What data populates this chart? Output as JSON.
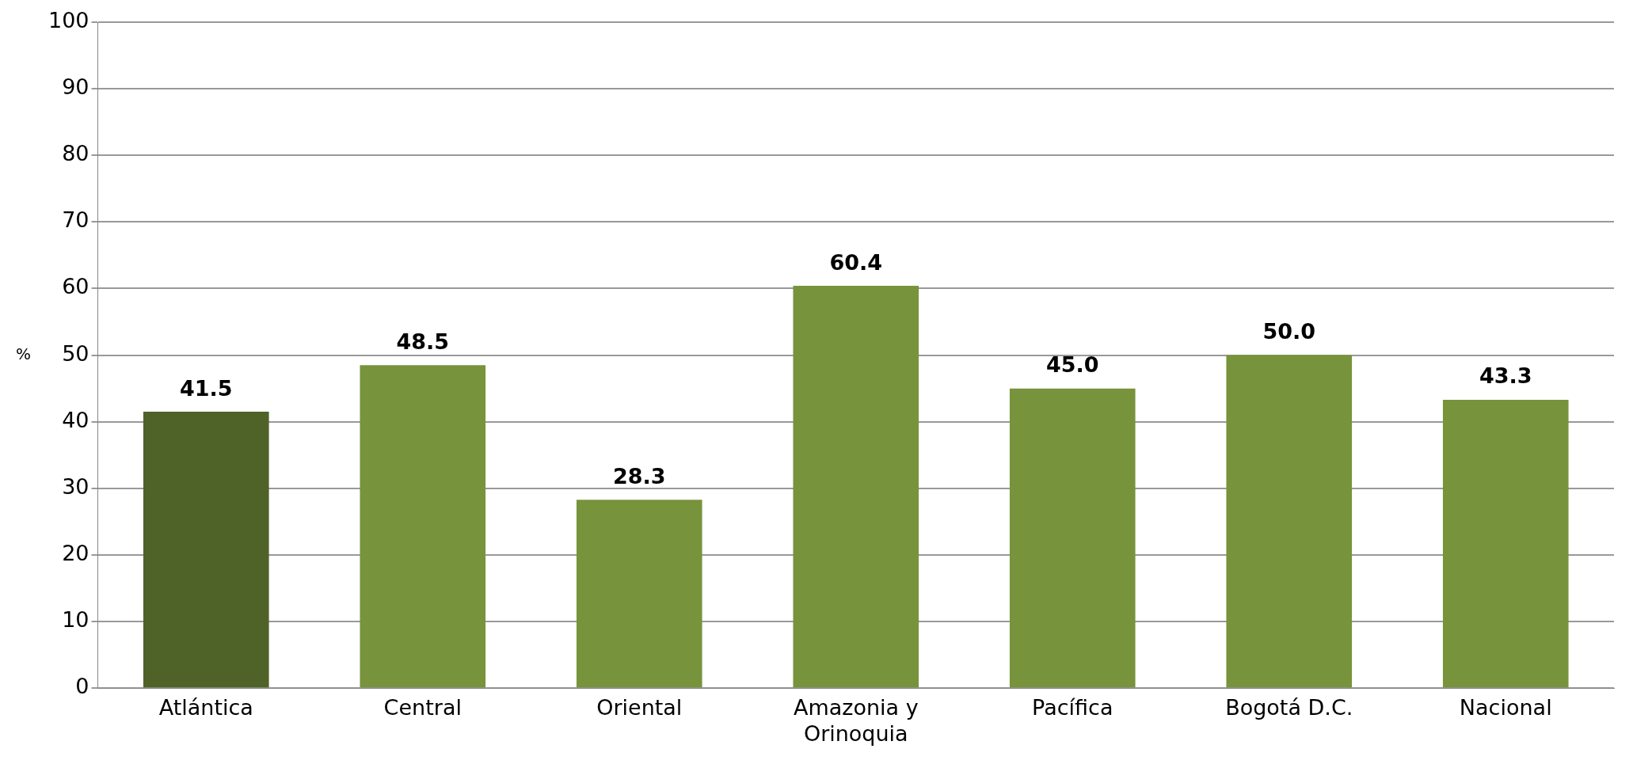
{
  "chart_data": {
    "type": "bar",
    "ylabel": "%",
    "categories": [
      "Atlántica",
      "Central",
      "Oriental",
      "Amazonia y Orinoquia",
      "Pacífica",
      "Bogotá D.C.",
      "Nacional"
    ],
    "values": [
      41.5,
      48.5,
      28.3,
      60.4,
      45.0,
      50.0,
      43.3
    ],
    "colors": [
      "#4f6228",
      "#77933c",
      "#77933c",
      "#77933c",
      "#77933c",
      "#77933c",
      "#77933c"
    ],
    "ylim": [
      0,
      100
    ],
    "yticks": [
      0,
      10,
      20,
      30,
      40,
      50,
      60,
      70,
      80,
      90,
      100
    ],
    "value_labels": [
      "41.5",
      "48.5",
      "28.3",
      "60.4",
      "45.0",
      "50.0",
      "43.3"
    ],
    "grid": "y",
    "legend": false
  }
}
